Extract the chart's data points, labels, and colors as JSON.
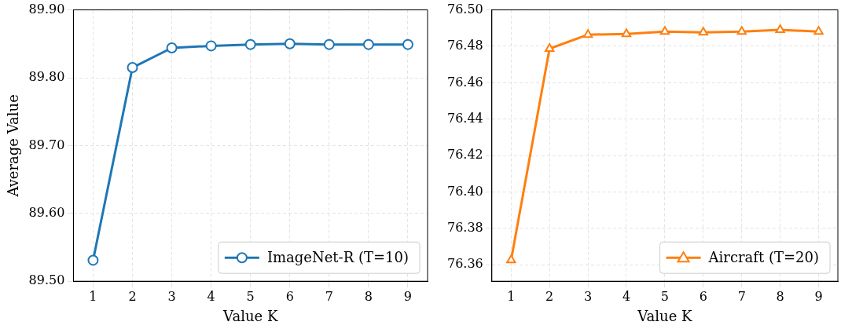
{
  "chart_data": [
    {
      "type": "line",
      "xlabel": "Value K",
      "ylabel": "Average Value",
      "categories": [
        "1",
        "2",
        "3",
        "4",
        "5",
        "6",
        "7",
        "8",
        "9"
      ],
      "series": [
        {
          "name": "ImageNet-R (T=10)",
          "color": "#1f77b4",
          "values": [
            89.531,
            89.815,
            89.844,
            89.847,
            89.849,
            89.85,
            89.849,
            89.849,
            89.849
          ]
        }
      ],
      "ylim": [
        89.5,
        89.9
      ],
      "yticks": [
        {
          "value": 89.5,
          "label": "89.50"
        },
        {
          "value": 89.6,
          "label": "89.60"
        },
        {
          "value": 89.7,
          "label": "89.70"
        },
        {
          "value": 89.8,
          "label": "89.80"
        },
        {
          "value": 89.9,
          "label": "89.90"
        }
      ],
      "grid": true,
      "legend": "bottom right",
      "marker": "circle",
      "line_style": "solid"
    },
    {
      "type": "line",
      "xlabel": "Value K",
      "categories": [
        "1",
        "2",
        "3",
        "4",
        "5",
        "6",
        "7",
        "8",
        "9"
      ],
      "series": [
        {
          "name": "Aircraft (T=20)",
          "color": "#ff7f0e",
          "values": [
            76.3626,
            76.4787,
            76.4864,
            76.4868,
            76.4881,
            76.4877,
            76.4881,
            76.489,
            76.4881
          ]
        }
      ],
      "ylim": [
        76.351,
        76.5
      ],
      "yticks": [
        {
          "value": 76.36,
          "label": "76.36"
        },
        {
          "value": 76.38,
          "label": "76.38"
        },
        {
          "value": 76.4,
          "label": "76.40"
        },
        {
          "value": 76.42,
          "label": "76.42"
        },
        {
          "value": 76.44,
          "label": "76.44"
        },
        {
          "value": 76.46,
          "label": "76.46"
        },
        {
          "value": 76.48,
          "label": "76.48"
        },
        {
          "value": 76.5,
          "label": "76.50"
        }
      ],
      "grid": true,
      "legend": "bottom right",
      "marker": "triangle",
      "line_style": "solid"
    }
  ]
}
